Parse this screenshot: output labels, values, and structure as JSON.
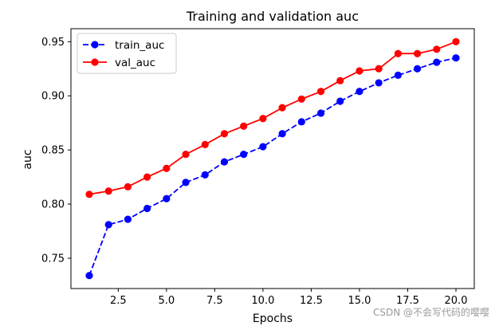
{
  "chart_data": {
    "type": "line",
    "title": "Training and validation auc",
    "xlabel": "Epochs",
    "ylabel": "auc",
    "xlim": [
      0.05,
      20.95
    ],
    "ylim": [
      0.722,
      0.962
    ],
    "xticks": [
      2.5,
      5.0,
      7.5,
      10.0,
      12.5,
      15.0,
      17.5,
      20.0
    ],
    "xtick_labels": [
      "2.5",
      "5.0",
      "7.5",
      "10.0",
      "12.5",
      "15.0",
      "17.5",
      "20.0"
    ],
    "yticks": [
      0.75,
      0.8,
      0.85,
      0.9,
      0.95
    ],
    "ytick_labels": [
      "0.75",
      "0.80",
      "0.85",
      "0.90",
      "0.95"
    ],
    "grid": false,
    "legend_position": "top-left",
    "x": [
      1,
      2,
      3,
      4,
      5,
      6,
      7,
      8,
      9,
      10,
      11,
      12,
      13,
      14,
      15,
      16,
      17,
      18,
      19,
      20
    ],
    "series": [
      {
        "name": "train_auc",
        "color": "#0000ff",
        "linestyle": "dashed",
        "marker": "circle",
        "values": [
          0.734,
          0.781,
          0.786,
          0.796,
          0.805,
          0.82,
          0.827,
          0.839,
          0.846,
          0.853,
          0.865,
          0.876,
          0.884,
          0.895,
          0.904,
          0.912,
          0.919,
          0.925,
          0.931,
          0.935
        ]
      },
      {
        "name": "val_auc",
        "color": "#ff0000",
        "linestyle": "solid",
        "marker": "circle",
        "values": [
          0.809,
          0.812,
          0.816,
          0.825,
          0.833,
          0.846,
          0.855,
          0.865,
          0.872,
          0.879,
          0.889,
          0.897,
          0.904,
          0.914,
          0.923,
          0.925,
          0.939,
          0.939,
          0.943,
          0.95
        ]
      }
    ]
  },
  "watermark": "CSDN @不会写代码的嘤嘤"
}
